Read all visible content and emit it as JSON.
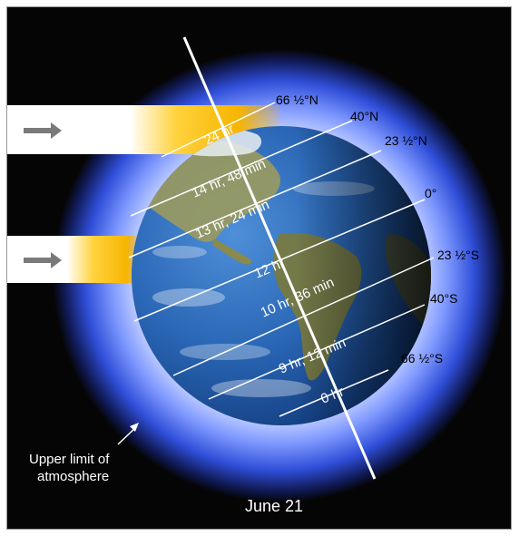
{
  "latitudes": [
    {
      "id": "lat-66n",
      "label": "66 ½°N"
    },
    {
      "id": "lat-40n",
      "label": "40°N"
    },
    {
      "id": "lat-23n",
      "label": "23 ½°N"
    },
    {
      "id": "lat-0",
      "label": "0°"
    },
    {
      "id": "lat-23s",
      "label": "23 ½°S"
    },
    {
      "id": "lat-40s",
      "label": "40°S"
    },
    {
      "id": "lat-66s",
      "label": "66 ½°S"
    }
  ],
  "daylight": [
    {
      "id": "day-66n",
      "label": "24 hr"
    },
    {
      "id": "day-40n",
      "label": "14 hr, 48 min"
    },
    {
      "id": "day-23n",
      "label": "13 hr, 24 min"
    },
    {
      "id": "day-0",
      "label": "12 hr"
    },
    {
      "id": "day-23s",
      "label": "10 hr, 36 min"
    },
    {
      "id": "day-40s",
      "label": "9 hr, 12 min"
    },
    {
      "id": "day-66s",
      "label": "0 hr"
    }
  ],
  "atmosphere_label": [
    "Upper limit of",
    "atmosphere"
  ],
  "date_label": "June 21",
  "colors": {
    "background": "#050505",
    "atmosphere": "#3a5fe0",
    "sunlight": "#f7b500",
    "ocean": "#1d5fb0",
    "land": "#8a8a4a"
  }
}
